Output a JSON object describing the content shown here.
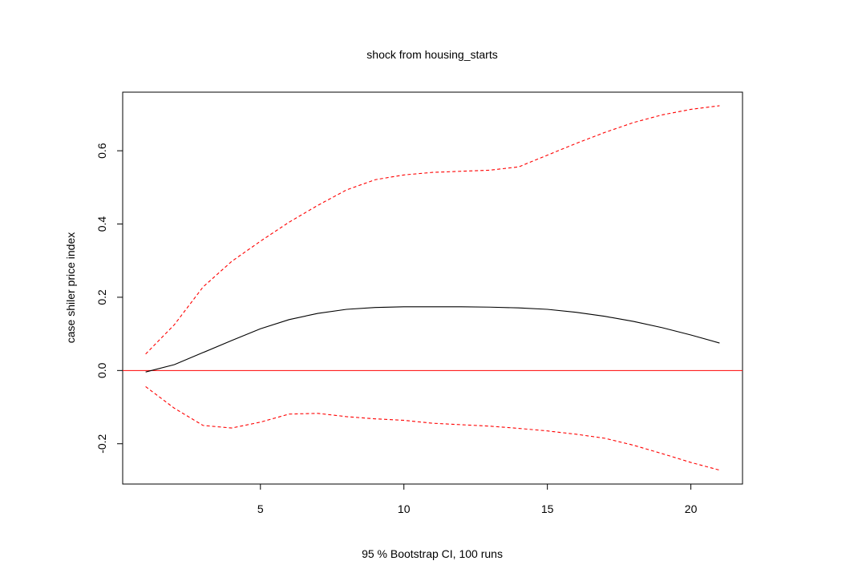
{
  "chart_data": {
    "type": "line",
    "title": "shock from housing_starts",
    "xlabel": "95 % Bootstrap CI,  100 runs",
    "ylabel": "case shiler price index",
    "xlim": [
      0.2,
      21.8
    ],
    "ylim": [
      -0.31,
      0.76
    ],
    "x_ticks": [
      5,
      10,
      15,
      20
    ],
    "y_ticks": [
      -0.2,
      0.0,
      0.2,
      0.4,
      0.6
    ],
    "y_tick_labels": [
      "-0.2",
      "0.0",
      "0.2",
      "0.4",
      "0.6"
    ],
    "reference_line": {
      "y": 0,
      "color": "#ff0000"
    },
    "grid": false,
    "legend": "none",
    "x": [
      1,
      2,
      3,
      4,
      5,
      6,
      7,
      8,
      9,
      10,
      11,
      12,
      13,
      14,
      15,
      16,
      17,
      18,
      19,
      20,
      21
    ],
    "series": [
      {
        "color": "#000000",
        "dash": "solid",
        "values": [
          -0.004,
          0.016,
          0.049,
          0.082,
          0.114,
          0.139,
          0.156,
          0.167,
          0.172,
          0.174,
          0.174,
          0.174,
          0.173,
          0.171,
          0.167,
          0.159,
          0.148,
          0.134,
          0.117,
          0.097,
          0.075
        ]
      },
      {
        "color": "#ff0000",
        "dash": "dashed",
        "values": [
          0.045,
          0.125,
          0.228,
          0.298,
          0.353,
          0.405,
          0.451,
          0.493,
          0.521,
          0.534,
          0.541,
          0.544,
          0.547,
          0.556,
          0.588,
          0.62,
          0.65,
          0.677,
          0.698,
          0.713,
          0.723
        ]
      },
      {
        "color": "#ff0000",
        "dash": "dashed",
        "values": [
          -0.044,
          -0.103,
          -0.15,
          -0.157,
          -0.141,
          -0.119,
          -0.117,
          -0.126,
          -0.132,
          -0.136,
          -0.144,
          -0.148,
          -0.152,
          -0.158,
          -0.165,
          -0.174,
          -0.185,
          -0.204,
          -0.227,
          -0.251,
          -0.272
        ]
      }
    ]
  }
}
